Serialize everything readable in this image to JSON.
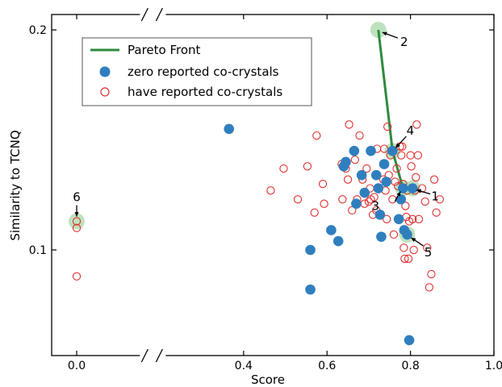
{
  "chart_data": {
    "type": "scatter",
    "title": "",
    "xlabel": "Score",
    "ylabel": "Similarity to TCNQ",
    "xlim": [
      -0.06,
      1.0
    ],
    "ylim": [
      0.052,
      0.207
    ],
    "axis_break": true,
    "x_ticks": [
      {
        "value": 0.0,
        "label": "0.0"
      },
      {
        "value": 0.4,
        "label": "0.4"
      },
      {
        "value": 0.6,
        "label": "0.6"
      },
      {
        "value": 0.8,
        "label": "0.8"
      },
      {
        "value": 1.0,
        "label": "1.0"
      }
    ],
    "y_ticks": [
      {
        "value": 0.1,
        "label": "0.1"
      },
      {
        "value": 0.2,
        "label": "0.2"
      }
    ],
    "legend_position": "top-left",
    "series": [
      {
        "name": "Pareto Front",
        "type": "line",
        "color": "#2e8b3e",
        "points": [
          [
            0.723,
            0.2
          ],
          [
            0.757,
            0.145
          ],
          [
            0.782,
            0.128
          ],
          [
            0.805,
            0.128
          ]
        ]
      },
      {
        "name": "zero reported co-crystals",
        "type": "scatter",
        "marker": "filled-circle",
        "color": "#2f7fbf",
        "points": [
          [
            0.365,
            0.155
          ],
          [
            0.56,
            0.1
          ],
          [
            0.56,
            0.082
          ],
          [
            0.61,
            0.109
          ],
          [
            0.627,
            0.104
          ],
          [
            0.64,
            0.138
          ],
          [
            0.645,
            0.14
          ],
          [
            0.665,
            0.145
          ],
          [
            0.67,
            0.121
          ],
          [
            0.683,
            0.134
          ],
          [
            0.69,
            0.126
          ],
          [
            0.705,
            0.145
          ],
          [
            0.718,
            0.134
          ],
          [
            0.723,
            0.128
          ],
          [
            0.727,
            0.116
          ],
          [
            0.73,
            0.106
          ],
          [
            0.737,
            0.139
          ],
          [
            0.742,
            0.131
          ],
          [
            0.757,
            0.145
          ],
          [
            0.772,
            0.114
          ],
          [
            0.777,
            0.123
          ],
          [
            0.782,
            0.128
          ],
          [
            0.785,
            0.109
          ],
          [
            0.792,
            0.107
          ],
          [
            0.797,
            0.059
          ],
          [
            0.805,
            0.128
          ]
        ]
      },
      {
        "name": "have reported co-crystals",
        "type": "scatter",
        "marker": "open-circle",
        "color": "#e03030",
        "points": [
          [
            0.0,
            0.113
          ],
          [
            0.0,
            0.11
          ],
          [
            0.0,
            0.088
          ],
          [
            0.465,
            0.127
          ],
          [
            0.496,
            0.137
          ],
          [
            0.53,
            0.123
          ],
          [
            0.553,
            0.138
          ],
          [
            0.57,
            0.117
          ],
          [
            0.575,
            0.152
          ],
          [
            0.59,
            0.13
          ],
          [
            0.593,
            0.121
          ],
          [
            0.635,
            0.139
          ],
          [
            0.637,
            0.123
          ],
          [
            0.645,
            0.137
          ],
          [
            0.65,
            0.132
          ],
          [
            0.653,
            0.157
          ],
          [
            0.66,
            0.118
          ],
          [
            0.667,
            0.141
          ],
          [
            0.672,
            0.123
          ],
          [
            0.678,
            0.152
          ],
          [
            0.685,
            0.132
          ],
          [
            0.69,
            0.121
          ],
          [
            0.695,
            0.137
          ],
          [
            0.7,
            0.122
          ],
          [
            0.703,
            0.128
          ],
          [
            0.705,
            0.123
          ],
          [
            0.71,
            0.116
          ],
          [
            0.713,
            0.124
          ],
          [
            0.718,
            0.118
          ],
          [
            0.72,
            0.146
          ],
          [
            0.735,
            0.132
          ],
          [
            0.737,
            0.146
          ],
          [
            0.74,
            0.127
          ],
          [
            0.743,
            0.114
          ],
          [
            0.745,
            0.156
          ],
          [
            0.748,
            0.134
          ],
          [
            0.752,
            0.143
          ],
          [
            0.757,
            0.123
          ],
          [
            0.76,
            0.107
          ],
          [
            0.763,
            0.131
          ],
          [
            0.767,
            0.137
          ],
          [
            0.77,
            0.129
          ],
          [
            0.775,
            0.147
          ],
          [
            0.778,
            0.143
          ],
          [
            0.78,
            0.147
          ],
          [
            0.782,
            0.13
          ],
          [
            0.784,
            0.101
          ],
          [
            0.786,
            0.096
          ],
          [
            0.788,
            0.12
          ],
          [
            0.79,
            0.115
          ],
          [
            0.792,
            0.127
          ],
          [
            0.795,
            0.096
          ],
          [
            0.797,
            0.113
          ],
          [
            0.8,
            0.143
          ],
          [
            0.802,
            0.138
          ],
          [
            0.805,
            0.114
          ],
          [
            0.808,
            0.1
          ],
          [
            0.81,
            0.127
          ],
          [
            0.813,
            0.133
          ],
          [
            0.815,
            0.157
          ],
          [
            0.818,
            0.143
          ],
          [
            0.82,
            0.114
          ],
          [
            0.828,
            0.128
          ],
          [
            0.835,
            0.122
          ],
          [
            0.84,
            0.101
          ],
          [
            0.845,
            0.083
          ],
          [
            0.85,
            0.089
          ],
          [
            0.857,
            0.132
          ],
          [
            0.862,
            0.117
          ],
          [
            0.87,
            0.123
          ]
        ]
      }
    ],
    "highlights": [
      {
        "label": "2",
        "point": [
          0.723,
          0.2
        ]
      },
      {
        "label": "4",
        "point": [
          0.757,
          0.145
        ]
      },
      {
        "label": "3",
        "point": [
          0.782,
          0.128
        ]
      },
      {
        "label": "1",
        "point": [
          0.805,
          0.128
        ]
      },
      {
        "label": "5",
        "point": [
          0.792,
          0.107
        ]
      },
      {
        "label": "6",
        "point": [
          0.0,
          0.113
        ]
      }
    ],
    "colors": {
      "highlight": "#a8d8a8"
    }
  }
}
